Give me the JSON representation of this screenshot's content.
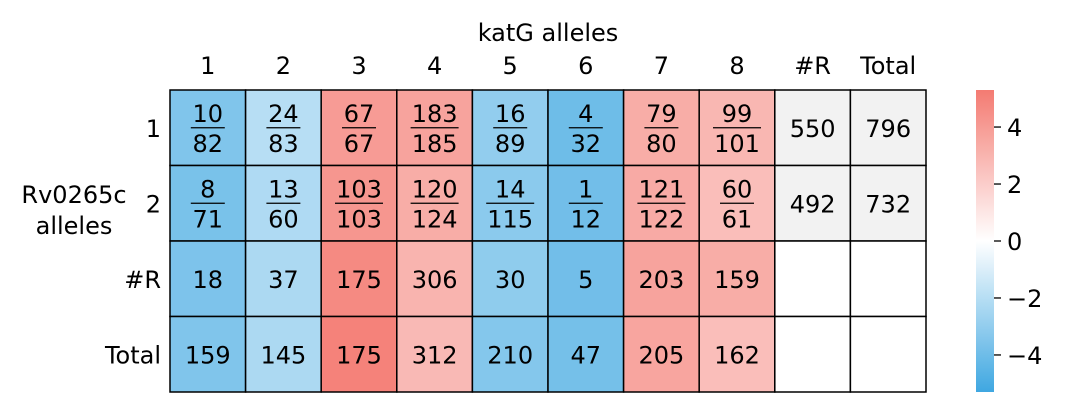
{
  "chart_data": {
    "type": "heatmap",
    "title": "katG alleles",
    "ylabel": "Rv0265c\nalleles",
    "col_labels": [
      "1",
      "2",
      "3",
      "4",
      "5",
      "6",
      "7",
      "8",
      "#R",
      "Total"
    ],
    "row_labels": [
      "1",
      "2",
      "#R",
      "Total"
    ],
    "cells": [
      [
        "10/82",
        "24/83",
        "67/67",
        "183/185",
        "16/89",
        "4/32",
        "79/80",
        "99/101",
        "550",
        "796"
      ],
      [
        "8/71",
        "13/60",
        "103/103",
        "120/124",
        "14/115",
        "1/12",
        "121/122",
        "60/61",
        "492",
        "732"
      ],
      [
        "18",
        "37",
        "175",
        "306",
        "30",
        "5",
        "203",
        "159",
        "",
        ""
      ],
      [
        "159",
        "145",
        "175",
        "312",
        "210",
        "47",
        "205",
        "162",
        "",
        ""
      ]
    ],
    "values": [
      [
        -3.5,
        -2.0,
        4.0,
        3.7,
        -3.0,
        -4.0,
        3.3,
        2.9,
        null,
        null
      ],
      [
        -3.7,
        -2.2,
        4.2,
        3.3,
        -3.2,
        -3.9,
        3.4,
        2.6,
        null,
        null
      ],
      [
        -3.6,
        -2.3,
        4.7,
        3.0,
        -3.1,
        -3.9,
        3.7,
        3.3,
        null,
        null
      ],
      [
        -3.5,
        -2.3,
        5.0,
        2.8,
        -3.4,
        -3.8,
        3.6,
        2.6,
        null,
        null
      ]
    ],
    "special_cells": {
      "totals_rows_0_1_fill": "#f2f2f2",
      "empty_fill": "#ffffff"
    },
    "colorbar": {
      "ticks": [
        4,
        2,
        0,
        -2,
        -4
      ],
      "tick_labels": [
        "4",
        "2",
        "0",
        "−2",
        "−4"
      ],
      "vmin": -5.3,
      "vmax": 5.3,
      "colors": {
        "low": "#3fa7e1",
        "mid": "#ffffff",
        "high": "#f47b72"
      }
    }
  }
}
